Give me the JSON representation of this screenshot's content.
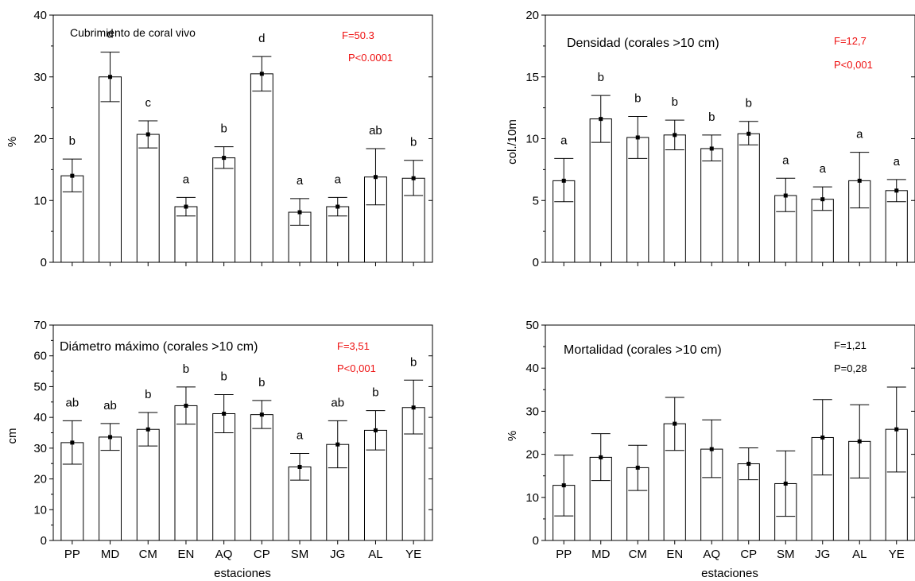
{
  "chart_data": [
    {
      "type": "bar",
      "title": "Cubrimiento de coral vivo",
      "ylabel": "%",
      "xlabel": "",
      "ylim": [
        0,
        40
      ],
      "yticks": [
        0,
        10,
        20,
        30,
        40
      ],
      "stat_lines": [
        "F=50.3",
        "P<0.0001"
      ],
      "stat_color": "#ee1111",
      "categories": [
        "PP",
        "MD",
        "CM",
        "EN",
        "AQ",
        "CP",
        "SM",
        "JG",
        "AL",
        "YE"
      ],
      "values": [
        14.0,
        30.0,
        20.7,
        9.0,
        16.9,
        30.5,
        8.1,
        9.0,
        13.8,
        13.6
      ],
      "err_low": [
        11.4,
        26.0,
        18.5,
        7.5,
        15.2,
        27.7,
        6.0,
        7.5,
        9.3,
        10.8
      ],
      "err_high": [
        16.7,
        34.0,
        22.9,
        10.5,
        18.7,
        33.3,
        10.3,
        10.5,
        18.4,
        16.5
      ],
      "letters": [
        "b",
        "d",
        "c",
        "a",
        "b",
        "d",
        "a",
        "a",
        "ab",
        "b"
      ],
      "show_x_ticklabels": false
    },
    {
      "type": "bar",
      "title": "Densidad (corales >10 cm)",
      "ylabel": "col./10m",
      "xlabel": "",
      "ylim": [
        0,
        20
      ],
      "yticks": [
        0,
        5,
        10,
        15,
        20
      ],
      "stat_lines": [
        "F=12,7",
        "P<0,001"
      ],
      "stat_color": "#ee1111",
      "categories": [
        "PP",
        "MD",
        "CM",
        "EN",
        "AQ",
        "CP",
        "SM",
        "JG",
        "AL",
        "YE"
      ],
      "values": [
        6.6,
        11.6,
        10.1,
        10.3,
        9.2,
        10.4,
        5.4,
        5.1,
        6.6,
        5.8
      ],
      "err_low": [
        4.9,
        9.7,
        8.4,
        9.1,
        8.2,
        9.5,
        4.1,
        4.2,
        4.4,
        4.9
      ],
      "err_high": [
        8.4,
        13.5,
        11.8,
        11.5,
        10.3,
        11.4,
        6.8,
        6.1,
        8.9,
        6.7
      ],
      "letters": [
        "a",
        "b",
        "b",
        "b",
        "b",
        "b",
        "a",
        "a",
        "a",
        "a"
      ],
      "show_x_ticklabels": false
    },
    {
      "type": "bar",
      "title": "Diámetro máximo (corales >10 cm)",
      "ylabel": "cm",
      "xlabel": "estaciones",
      "ylim": [
        0,
        70
      ],
      "yticks": [
        0,
        10,
        20,
        30,
        40,
        50,
        60,
        70
      ],
      "stat_lines": [
        "F=3,51",
        "P<0,001"
      ],
      "stat_color": "#ee1111",
      "categories": [
        "PP",
        "MD",
        "CM",
        "EN",
        "AQ",
        "CP",
        "SM",
        "JG",
        "AL",
        "YE"
      ],
      "values": [
        31.8,
        33.6,
        36.1,
        43.8,
        41.2,
        40.9,
        23.9,
        31.2,
        35.8,
        43.2
      ],
      "err_low": [
        24.8,
        29.3,
        30.7,
        37.8,
        35.0,
        36.4,
        19.6,
        23.6,
        29.4,
        34.6
      ],
      "err_high": [
        38.9,
        38.0,
        41.6,
        49.9,
        47.4,
        45.5,
        28.3,
        38.9,
        42.2,
        52.1
      ],
      "letters": [
        "ab",
        "ab",
        "b",
        "b",
        "b",
        "b",
        "a",
        "ab",
        "b",
        "b"
      ],
      "show_x_ticklabels": true
    },
    {
      "type": "bar",
      "title": "Mortalidad (corales >10 cm)",
      "ylabel": "%",
      "xlabel": "estaciones",
      "ylim": [
        0,
        50
      ],
      "yticks": [
        0,
        10,
        20,
        30,
        40,
        50
      ],
      "stat_lines": [
        "F=1,21",
        "P=0,28"
      ],
      "stat_color": "#000000",
      "categories": [
        "PP",
        "MD",
        "CM",
        "EN",
        "AQ",
        "CP",
        "SM",
        "JG",
        "AL",
        "YE"
      ],
      "values": [
        12.8,
        19.3,
        16.9,
        27.1,
        21.2,
        17.8,
        13.2,
        23.9,
        23.0,
        25.8
      ],
      "err_low": [
        5.7,
        13.9,
        11.6,
        20.9,
        14.6,
        14.1,
        5.6,
        15.2,
        14.5,
        15.9
      ],
      "err_high": [
        19.8,
        24.8,
        22.1,
        33.2,
        28.0,
        21.5,
        20.8,
        32.7,
        31.5,
        35.6
      ],
      "letters": [],
      "show_x_ticklabels": true
    }
  ]
}
